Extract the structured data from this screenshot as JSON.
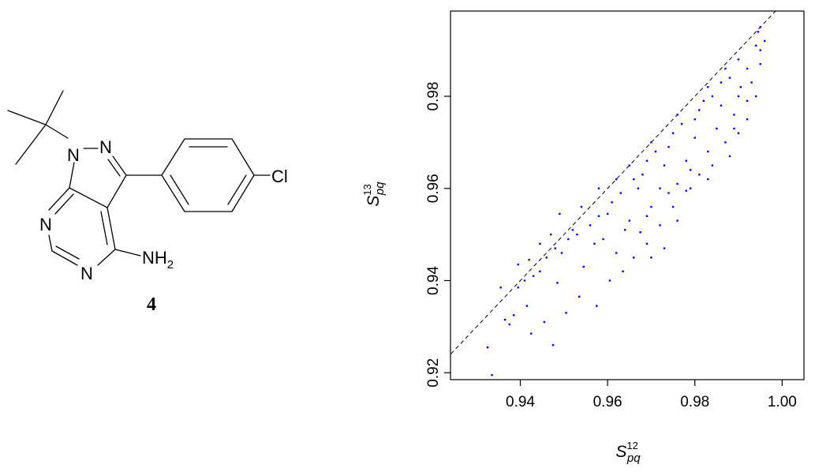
{
  "molecule": {
    "atoms": {
      "n1": "N",
      "n2": "N",
      "n7": "N",
      "n5": "N",
      "cl": "Cl",
      "nh2": "NH",
      "nh2_sub": "2"
    },
    "compound_label": "4"
  },
  "chart_data": {
    "type": "scatter",
    "title": "",
    "xlabel": {
      "base": "S",
      "sup": "12",
      "sub": "pq"
    },
    "ylabel": {
      "base": "S",
      "sup": "13",
      "sub": "pq"
    },
    "xlim": [
      0.924,
      1.005
    ],
    "ylim": [
      0.9185,
      0.9985
    ],
    "xticks": [
      0.94,
      0.96,
      0.98,
      1.0
    ],
    "xtick_labels": [
      "0.94",
      "0.96",
      "0.98",
      "1.00"
    ],
    "yticks": [
      0.92,
      0.94,
      0.96,
      0.98
    ],
    "ytick_labels": [
      "0.92",
      "0.94",
      "0.96",
      "0.98"
    ],
    "reference_line": {
      "style": "dashed",
      "equation": "y = x"
    },
    "grid": false,
    "point_color": "#0000ff",
    "series": [
      {
        "points": [
          [
            0.9335,
            0.9195
          ],
          [
            0.9325,
            0.9255
          ],
          [
            0.9365,
            0.9315
          ],
          [
            0.9375,
            0.9305
          ],
          [
            0.9385,
            0.9325
          ],
          [
            0.9395,
            0.9385
          ],
          [
            0.9355,
            0.9385
          ],
          [
            0.9415,
            0.9345
          ],
          [
            0.9425,
            0.9285
          ],
          [
            0.9475,
            0.926
          ],
          [
            0.9455,
            0.931
          ],
          [
            0.9505,
            0.933
          ],
          [
            0.9535,
            0.9365
          ],
          [
            0.9575,
            0.9345
          ],
          [
            0.9445,
            0.942
          ],
          [
            0.9485,
            0.9395
          ],
          [
            0.942,
            0.9445
          ],
          [
            0.9395,
            0.9435
          ],
          [
            0.9445,
            0.948
          ],
          [
            0.9495,
            0.946
          ],
          [
            0.9545,
            0.943
          ],
          [
            0.9605,
            0.94
          ],
          [
            0.9635,
            0.942
          ],
          [
            0.966,
            0.945
          ],
          [
            0.969,
            0.948
          ],
          [
            0.947,
            0.95
          ],
          [
            0.952,
            0.951
          ],
          [
            0.957,
            0.948
          ],
          [
            0.962,
            0.946
          ],
          [
            0.9675,
            0.9505
          ],
          [
            0.972,
            0.952
          ],
          [
            0.954,
            0.956
          ],
          [
            0.949,
            0.9545
          ],
          [
            0.96,
            0.9545
          ],
          [
            0.965,
            0.953
          ],
          [
            0.97,
            0.956
          ],
          [
            0.975,
            0.956
          ],
          [
            0.978,
            0.9595
          ],
          [
            0.958,
            0.96
          ],
          [
            0.962,
            0.962
          ],
          [
            0.967,
            0.96
          ],
          [
            0.972,
            0.96
          ],
          [
            0.976,
            0.961
          ],
          [
            0.981,
            0.963
          ],
          [
            0.984,
            0.965
          ],
          [
            0.965,
            0.965
          ],
          [
            0.969,
            0.966
          ],
          [
            0.973,
            0.965
          ],
          [
            0.978,
            0.966
          ],
          [
            0.983,
            0.968
          ],
          [
            0.987,
            0.97
          ],
          [
            0.99,
            0.972
          ],
          [
            0.97,
            0.97
          ],
          [
            0.975,
            0.972
          ],
          [
            0.98,
            0.971
          ],
          [
            0.985,
            0.973
          ],
          [
            0.989,
            0.976
          ],
          [
            0.992,
            0.979
          ],
          [
            0.994,
            0.98
          ],
          [
            0.976,
            0.976
          ],
          [
            0.981,
            0.977
          ],
          [
            0.986,
            0.978
          ],
          [
            0.99,
            0.98
          ],
          [
            0.993,
            0.983
          ],
          [
            0.995,
            0.987
          ],
          [
            0.983,
            0.982
          ],
          [
            0.988,
            0.984
          ],
          [
            0.992,
            0.986
          ],
          [
            0.995,
            0.99
          ],
          [
            0.996,
            0.992
          ],
          [
            0.99,
            0.988
          ],
          [
            0.994,
            0.991
          ],
          [
            0.9945,
            0.994
          ],
          [
            0.995,
            0.995
          ],
          [
            0.987,
            0.986
          ],
          [
            0.984,
            0.98
          ],
          [
            0.98,
            0.975
          ],
          [
            0.974,
            0.969
          ],
          [
            0.968,
            0.963
          ],
          [
            0.963,
            0.959
          ],
          [
            0.958,
            0.954
          ],
          [
            0.953,
            0.95
          ],
          [
            0.948,
            0.947
          ],
          [
            0.943,
            0.941
          ],
          [
            0.9905,
            0.982
          ],
          [
            0.986,
            0.983
          ],
          [
            0.982,
            0.979
          ],
          [
            0.977,
            0.974
          ],
          [
            0.971,
            0.968
          ],
          [
            0.966,
            0.962
          ],
          [
            0.961,
            0.957
          ],
          [
            0.956,
            0.952
          ],
          [
            0.951,
            0.949
          ],
          [
            0.946,
            0.945
          ],
          [
            0.941,
            0.94
          ],
          [
            0.959,
            0.949
          ],
          [
            0.964,
            0.951
          ],
          [
            0.969,
            0.954
          ],
          [
            0.974,
            0.959
          ],
          [
            0.979,
            0.964
          ],
          [
            0.989,
            0.973
          ],
          [
            0.992,
            0.975
          ],
          [
            0.979,
            0.96
          ],
          [
            0.983,
            0.962
          ],
          [
            0.988,
            0.967
          ],
          [
            0.976,
            0.953
          ],
          [
            0.973,
            0.947
          ],
          [
            0.97,
            0.945
          ]
        ]
      }
    ]
  }
}
